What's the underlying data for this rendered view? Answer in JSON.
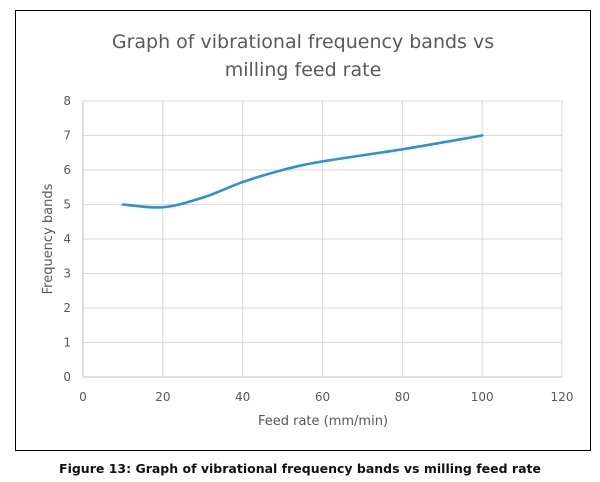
{
  "chart_data": {
    "type": "line",
    "title_lines": [
      "Graph of vibrational frequency bands vs",
      "milling feed rate"
    ],
    "xlabel": "Feed rate (mm/min)",
    "ylabel": "Frequency bands",
    "xlim": [
      0,
      120
    ],
    "ylim": [
      0,
      8
    ],
    "xticks": [
      0,
      20,
      40,
      60,
      80,
      100,
      120
    ],
    "yticks": [
      0,
      1,
      2,
      3,
      4,
      5,
      6,
      7,
      8
    ],
    "grid": true,
    "smooth": true,
    "series": [
      {
        "name": "Frequency bands",
        "color": "#2E92CC",
        "x": [
          10,
          20,
          30,
          40,
          50,
          60,
          80,
          100
        ],
        "y": [
          5.0,
          4.92,
          5.2,
          5.65,
          6.0,
          6.25,
          6.6,
          7.0
        ]
      }
    ],
    "legend": "none"
  },
  "caption": "Figure 13: Graph of vibrational frequency bands vs milling feed rate"
}
